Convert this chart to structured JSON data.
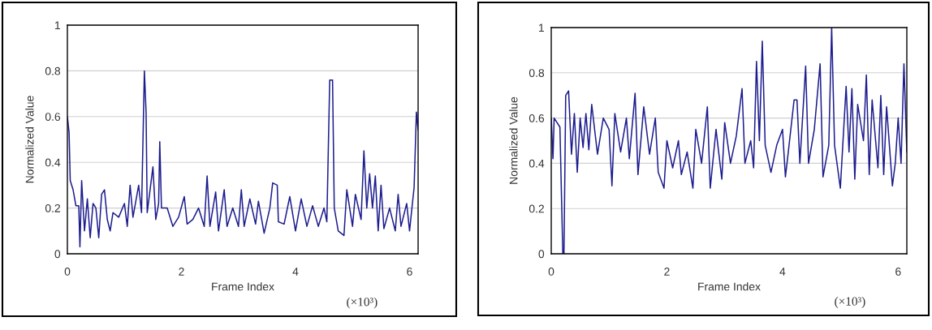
{
  "chart_data": [
    {
      "type": "line",
      "xlabel": "Frame Index",
      "ylabel": "Normalized Value",
      "annotations": [
        "(×10³)"
      ],
      "xlim": [
        0,
        6.15
      ],
      "ylim": [
        0,
        1
      ],
      "xticks": [
        0,
        2,
        4,
        6
      ],
      "yticks": [
        0,
        0.2,
        0.4,
        0.6,
        0.8,
        1
      ],
      "grid": "y",
      "series": [
        {
          "color": "#1c1c8e",
          "x": [
            0,
            0.03,
            0.05,
            0.1,
            0.15,
            0.2,
            0.22,
            0.25,
            0.3,
            0.35,
            0.4,
            0.45,
            0.5,
            0.55,
            0.6,
            0.65,
            0.7,
            0.75,
            0.8,
            0.9,
            1.0,
            1.05,
            1.1,
            1.15,
            1.25,
            1.3,
            1.35,
            1.38,
            1.4,
            1.5,
            1.55,
            1.6,
            1.62,
            1.65,
            1.75,
            1.85,
            1.95,
            2.05,
            2.1,
            2.2,
            2.3,
            2.4,
            2.45,
            2.5,
            2.6,
            2.65,
            2.75,
            2.8,
            2.9,
            3.0,
            3.05,
            3.1,
            3.2,
            3.3,
            3.35,
            3.45,
            3.55,
            3.6,
            3.68,
            3.7,
            3.8,
            3.9,
            4.0,
            4.1,
            4.2,
            4.3,
            4.4,
            4.5,
            4.55,
            4.6,
            4.65,
            4.68,
            4.75,
            4.85,
            4.9,
            5.0,
            5.05,
            5.15,
            5.2,
            5.25,
            5.3,
            5.35,
            5.4,
            5.45,
            5.5,
            5.55,
            5.65,
            5.75,
            5.8,
            5.85,
            5.95,
            6.0,
            6.05,
            6.08,
            6.12,
            6.15
          ],
          "values": [
            0.6,
            0.53,
            0.32,
            0.28,
            0.21,
            0.21,
            0.03,
            0.32,
            0.1,
            0.24,
            0.07,
            0.22,
            0.2,
            0.07,
            0.26,
            0.28,
            0.15,
            0.1,
            0.18,
            0.16,
            0.22,
            0.12,
            0.3,
            0.16,
            0.3,
            0.18,
            0.8,
            0.62,
            0.18,
            0.38,
            0.15,
            0.22,
            0.49,
            0.2,
            0.2,
            0.12,
            0.16,
            0.25,
            0.13,
            0.15,
            0.2,
            0.12,
            0.34,
            0.12,
            0.27,
            0.1,
            0.28,
            0.12,
            0.2,
            0.12,
            0.28,
            0.12,
            0.24,
            0.13,
            0.23,
            0.09,
            0.2,
            0.31,
            0.3,
            0.14,
            0.13,
            0.25,
            0.1,
            0.24,
            0.12,
            0.21,
            0.12,
            0.2,
            0.14,
            0.76,
            0.76,
            0.2,
            0.1,
            0.08,
            0.28,
            0.12,
            0.26,
            0.15,
            0.45,
            0.2,
            0.35,
            0.2,
            0.34,
            0.1,
            0.3,
            0.11,
            0.2,
            0.1,
            0.26,
            0.12,
            0.22,
            0.1,
            0.22,
            0.29,
            0.62,
            0.54
          ]
        }
      ]
    },
    {
      "type": "line",
      "xlabel": "Frame Index",
      "ylabel": "Normalized Value",
      "annotations": [
        "(×10³)"
      ],
      "xlim": [
        0,
        6.15
      ],
      "ylim": [
        0,
        1
      ],
      "xticks": [
        0,
        2,
        4,
        6
      ],
      "yticks": [
        0,
        0.2,
        0.4,
        0.6,
        0.8,
        1
      ],
      "grid": "y",
      "series": [
        {
          "color": "#1c1c8e",
          "x": [
            0,
            0.03,
            0.05,
            0.1,
            0.15,
            0.2,
            0.22,
            0.25,
            0.3,
            0.35,
            0.4,
            0.45,
            0.5,
            0.55,
            0.6,
            0.65,
            0.7,
            0.8,
            0.9,
            1.0,
            1.05,
            1.1,
            1.2,
            1.3,
            1.35,
            1.45,
            1.5,
            1.6,
            1.7,
            1.8,
            1.85,
            1.95,
            2.0,
            2.1,
            2.2,
            2.25,
            2.35,
            2.45,
            2.5,
            2.6,
            2.7,
            2.75,
            2.85,
            2.95,
            3.0,
            3.1,
            3.2,
            3.3,
            3.35,
            3.45,
            3.5,
            3.55,
            3.6,
            3.65,
            3.7,
            3.8,
            3.9,
            4.0,
            4.05,
            4.1,
            4.2,
            4.25,
            4.3,
            4.4,
            4.45,
            4.55,
            4.65,
            4.7,
            4.8,
            4.85,
            4.9,
            5.0,
            5.1,
            5.15,
            5.2,
            5.25,
            5.3,
            5.4,
            5.45,
            5.5,
            5.55,
            5.65,
            5.7,
            5.75,
            5.8,
            5.9,
            5.95,
            6.0,
            6.05,
            6.1,
            6.15
          ],
          "values": [
            0.6,
            0.42,
            0.6,
            0.58,
            0.56,
            0.0,
            0.0,
            0.7,
            0.72,
            0.44,
            0.62,
            0.36,
            0.6,
            0.47,
            0.62,
            0.46,
            0.66,
            0.44,
            0.6,
            0.55,
            0.3,
            0.62,
            0.45,
            0.6,
            0.42,
            0.71,
            0.35,
            0.65,
            0.44,
            0.6,
            0.36,
            0.29,
            0.5,
            0.38,
            0.5,
            0.35,
            0.45,
            0.29,
            0.55,
            0.4,
            0.65,
            0.29,
            0.55,
            0.33,
            0.58,
            0.4,
            0.52,
            0.73,
            0.4,
            0.5,
            0.38,
            0.85,
            0.5,
            0.94,
            0.48,
            0.36,
            0.48,
            0.55,
            0.34,
            0.45,
            0.68,
            0.68,
            0.4,
            0.83,
            0.4,
            0.55,
            0.84,
            0.34,
            0.48,
            1.0,
            0.48,
            0.29,
            0.74,
            0.45,
            0.73,
            0.33,
            0.66,
            0.5,
            0.79,
            0.35,
            0.68,
            0.38,
            0.7,
            0.35,
            0.65,
            0.3,
            0.4,
            0.6,
            0.4,
            0.84,
            0.45
          ]
        }
      ]
    }
  ]
}
